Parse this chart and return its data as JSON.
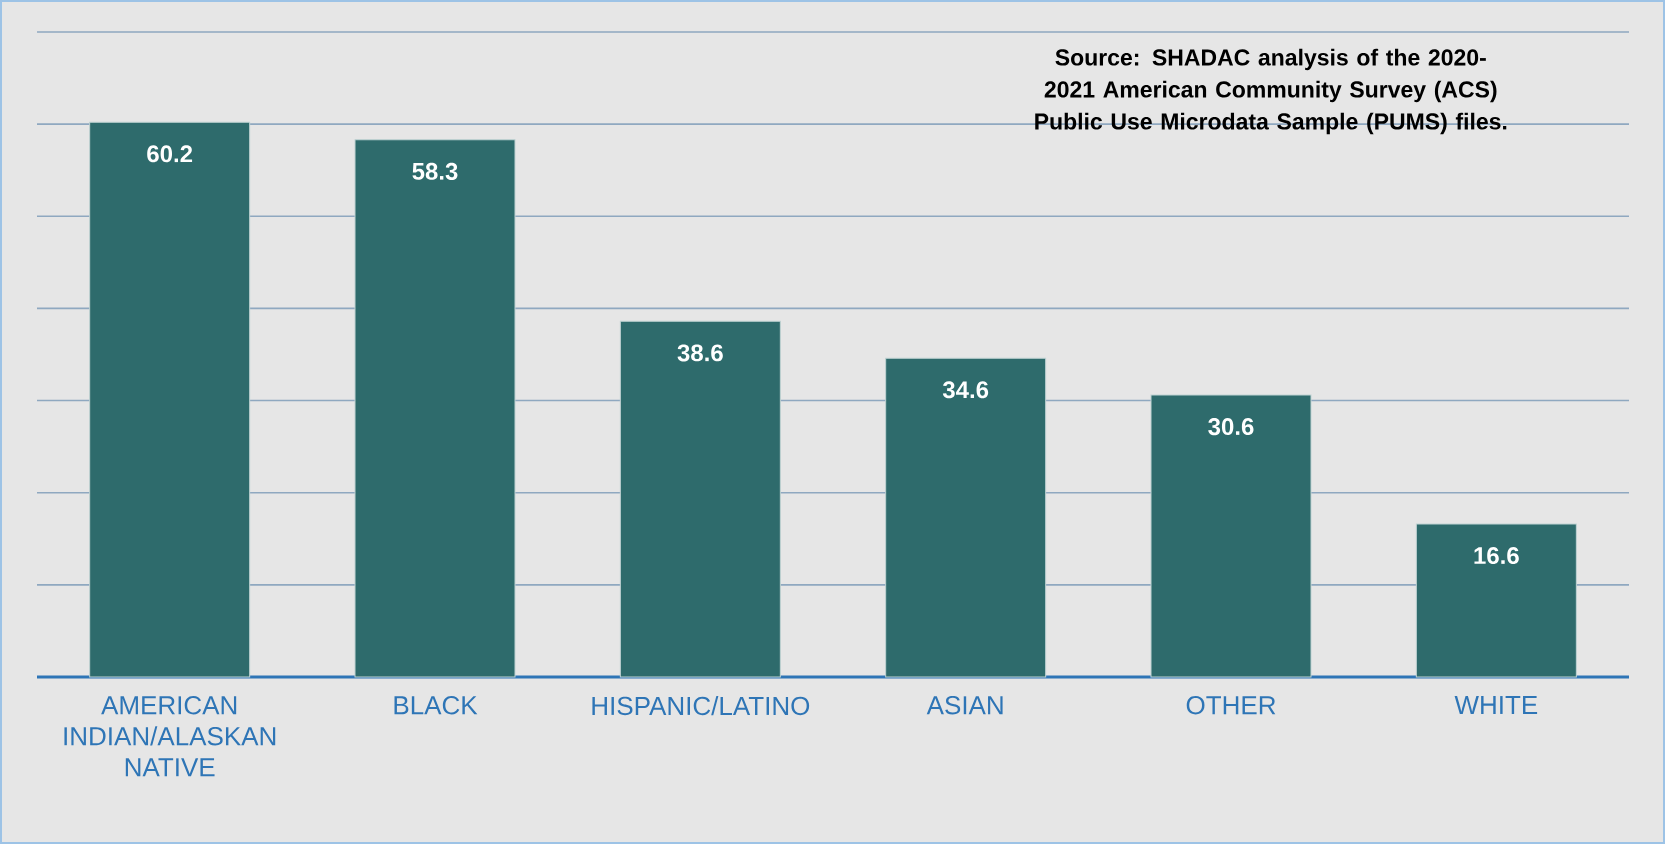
{
  "chart_data": {
    "type": "bar",
    "categories": [
      "AMERICAN INDIAN/ALASKAN NATIVE",
      "BLACK",
      "HISPANIC/LATINO",
      "ASIAN",
      "OTHER",
      "WHITE"
    ],
    "values": [
      60.2,
      58.3,
      38.6,
      34.6,
      30.6,
      16.6
    ],
    "color": "#2e6b6c",
    "ylim": [
      0,
      70
    ],
    "yticks": [
      {
        "value": 0,
        "label": null
      },
      {
        "value": 10,
        "label": null
      },
      {
        "value": 20,
        "label": null
      },
      {
        "value": 30,
        "label": null
      },
      {
        "value": 40,
        "label": null
      },
      {
        "value": 50,
        "label": null
      },
      {
        "value": 60,
        "label": null
      },
      {
        "value": 70,
        "label": null
      }
    ],
    "tick_labels": "x",
    "grid": "y",
    "data_labels": true,
    "annotations": [
      "Source:  SHADAC analysis of the 2020-2021 American Community Survey (ACS) Public Use Microdata Sample (PUMS) files."
    ]
  }
}
